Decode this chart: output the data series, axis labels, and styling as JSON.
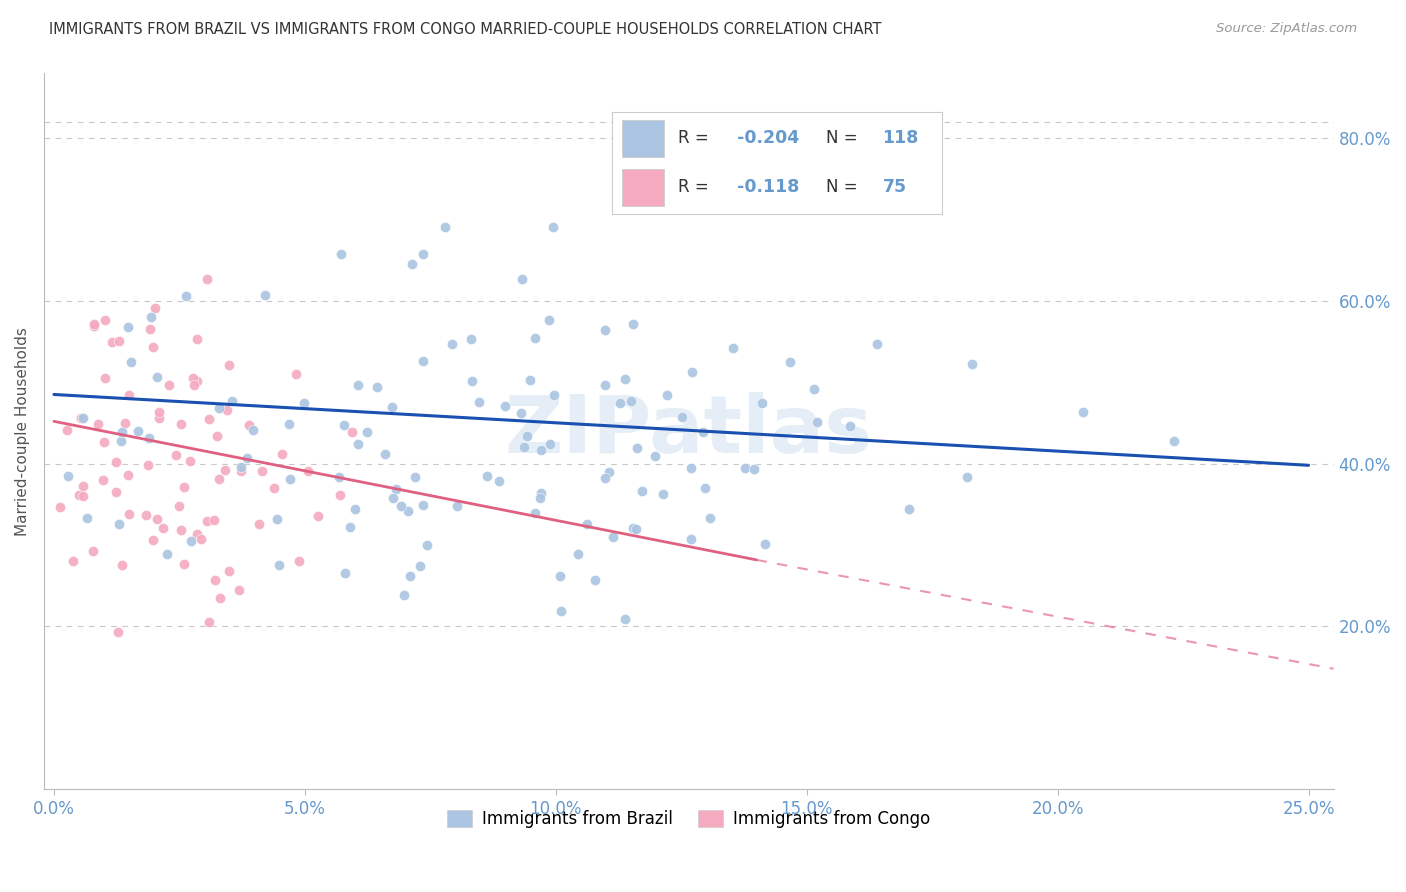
{
  "title": "IMMIGRANTS FROM BRAZIL VS IMMIGRANTS FROM CONGO MARRIED-COUPLE HOUSEHOLDS CORRELATION CHART",
  "source": "Source: ZipAtlas.com",
  "xlabel_vals": [
    0.0,
    0.05,
    0.1,
    0.15,
    0.2,
    0.25
  ],
  "ylabel_vals": [
    0.2,
    0.4,
    0.6,
    0.8
  ],
  "xlim": [
    -0.002,
    0.255
  ],
  "ylim": [
    0.0,
    0.88
  ],
  "brazil_R": -0.204,
  "brazil_N": 118,
  "congo_R": -0.118,
  "congo_N": 75,
  "brazil_color": "#aac4e2",
  "congo_color": "#f5aabf",
  "brazil_line_color": "#1a50b0",
  "congo_line_color": "#e06080",
  "congo_line_solid_end": 0.14,
  "watermark": "ZIPatlas",
  "legend_brazil_label": "Immigrants from Brazil",
  "legend_congo_label": "Immigrants from Congo",
  "background_color": "#ffffff",
  "grid_color": "#c8c8c8",
  "title_color": "#333333",
  "axis_label_color": "#6699cc",
  "brazil_seed": 42,
  "congo_seed": 7,
  "brazil_line_y0": 0.485,
  "brazil_line_y1": 0.398,
  "congo_line_y0": 0.452,
  "congo_line_y1": 0.148
}
